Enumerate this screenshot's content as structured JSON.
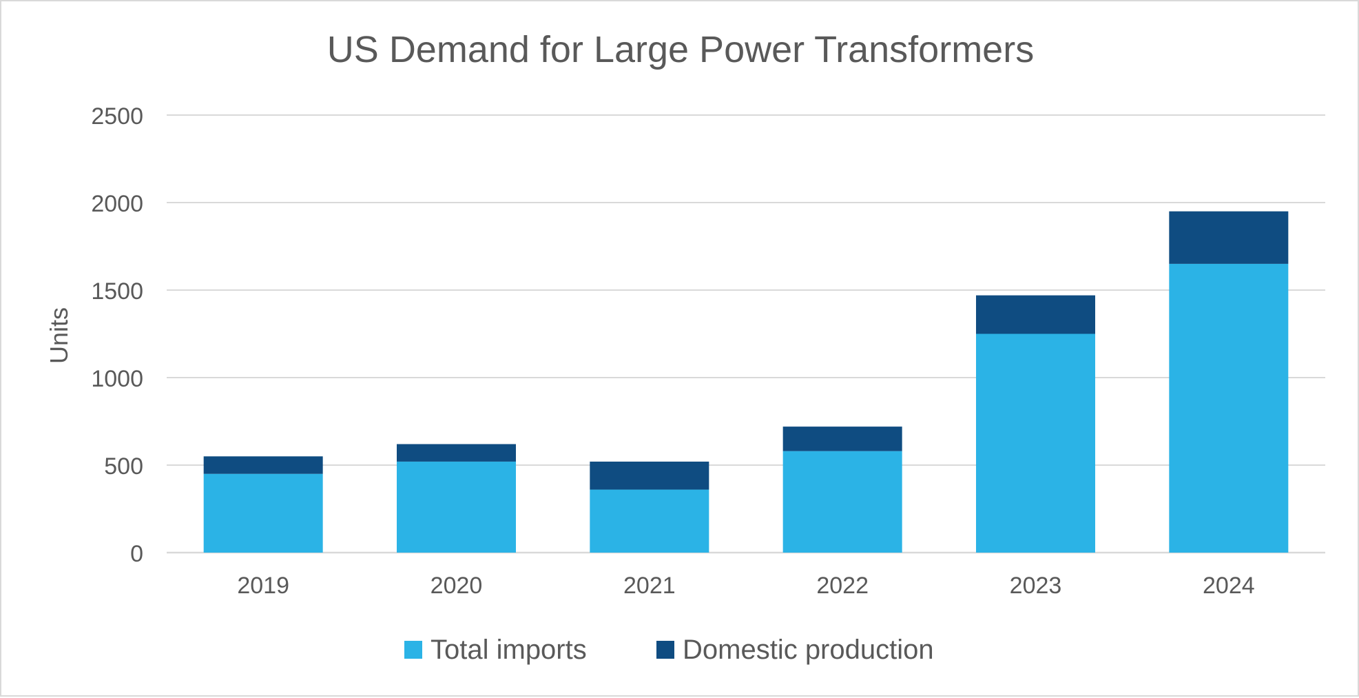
{
  "chart_data": {
    "type": "bar",
    "stacked": true,
    "title": "US Demand for Large Power Transformers",
    "xlabel": "",
    "ylabel": "Units",
    "categories": [
      "2019",
      "2020",
      "2021",
      "2022",
      "2023",
      "2024"
    ],
    "series": [
      {
        "name": "Total imports",
        "color": "#2bb3e6",
        "values": [
          450,
          520,
          360,
          580,
          1250,
          1650
        ]
      },
      {
        "name": "Domestic production",
        "color": "#0f4c81",
        "values": [
          100,
          100,
          160,
          140,
          220,
          300
        ]
      }
    ],
    "ylim": [
      0,
      2500
    ],
    "yticks": [
      "0",
      "500",
      "1000",
      "1500",
      "2000",
      "2500"
    ],
    "grid": true,
    "legend_position": "bottom-center"
  }
}
